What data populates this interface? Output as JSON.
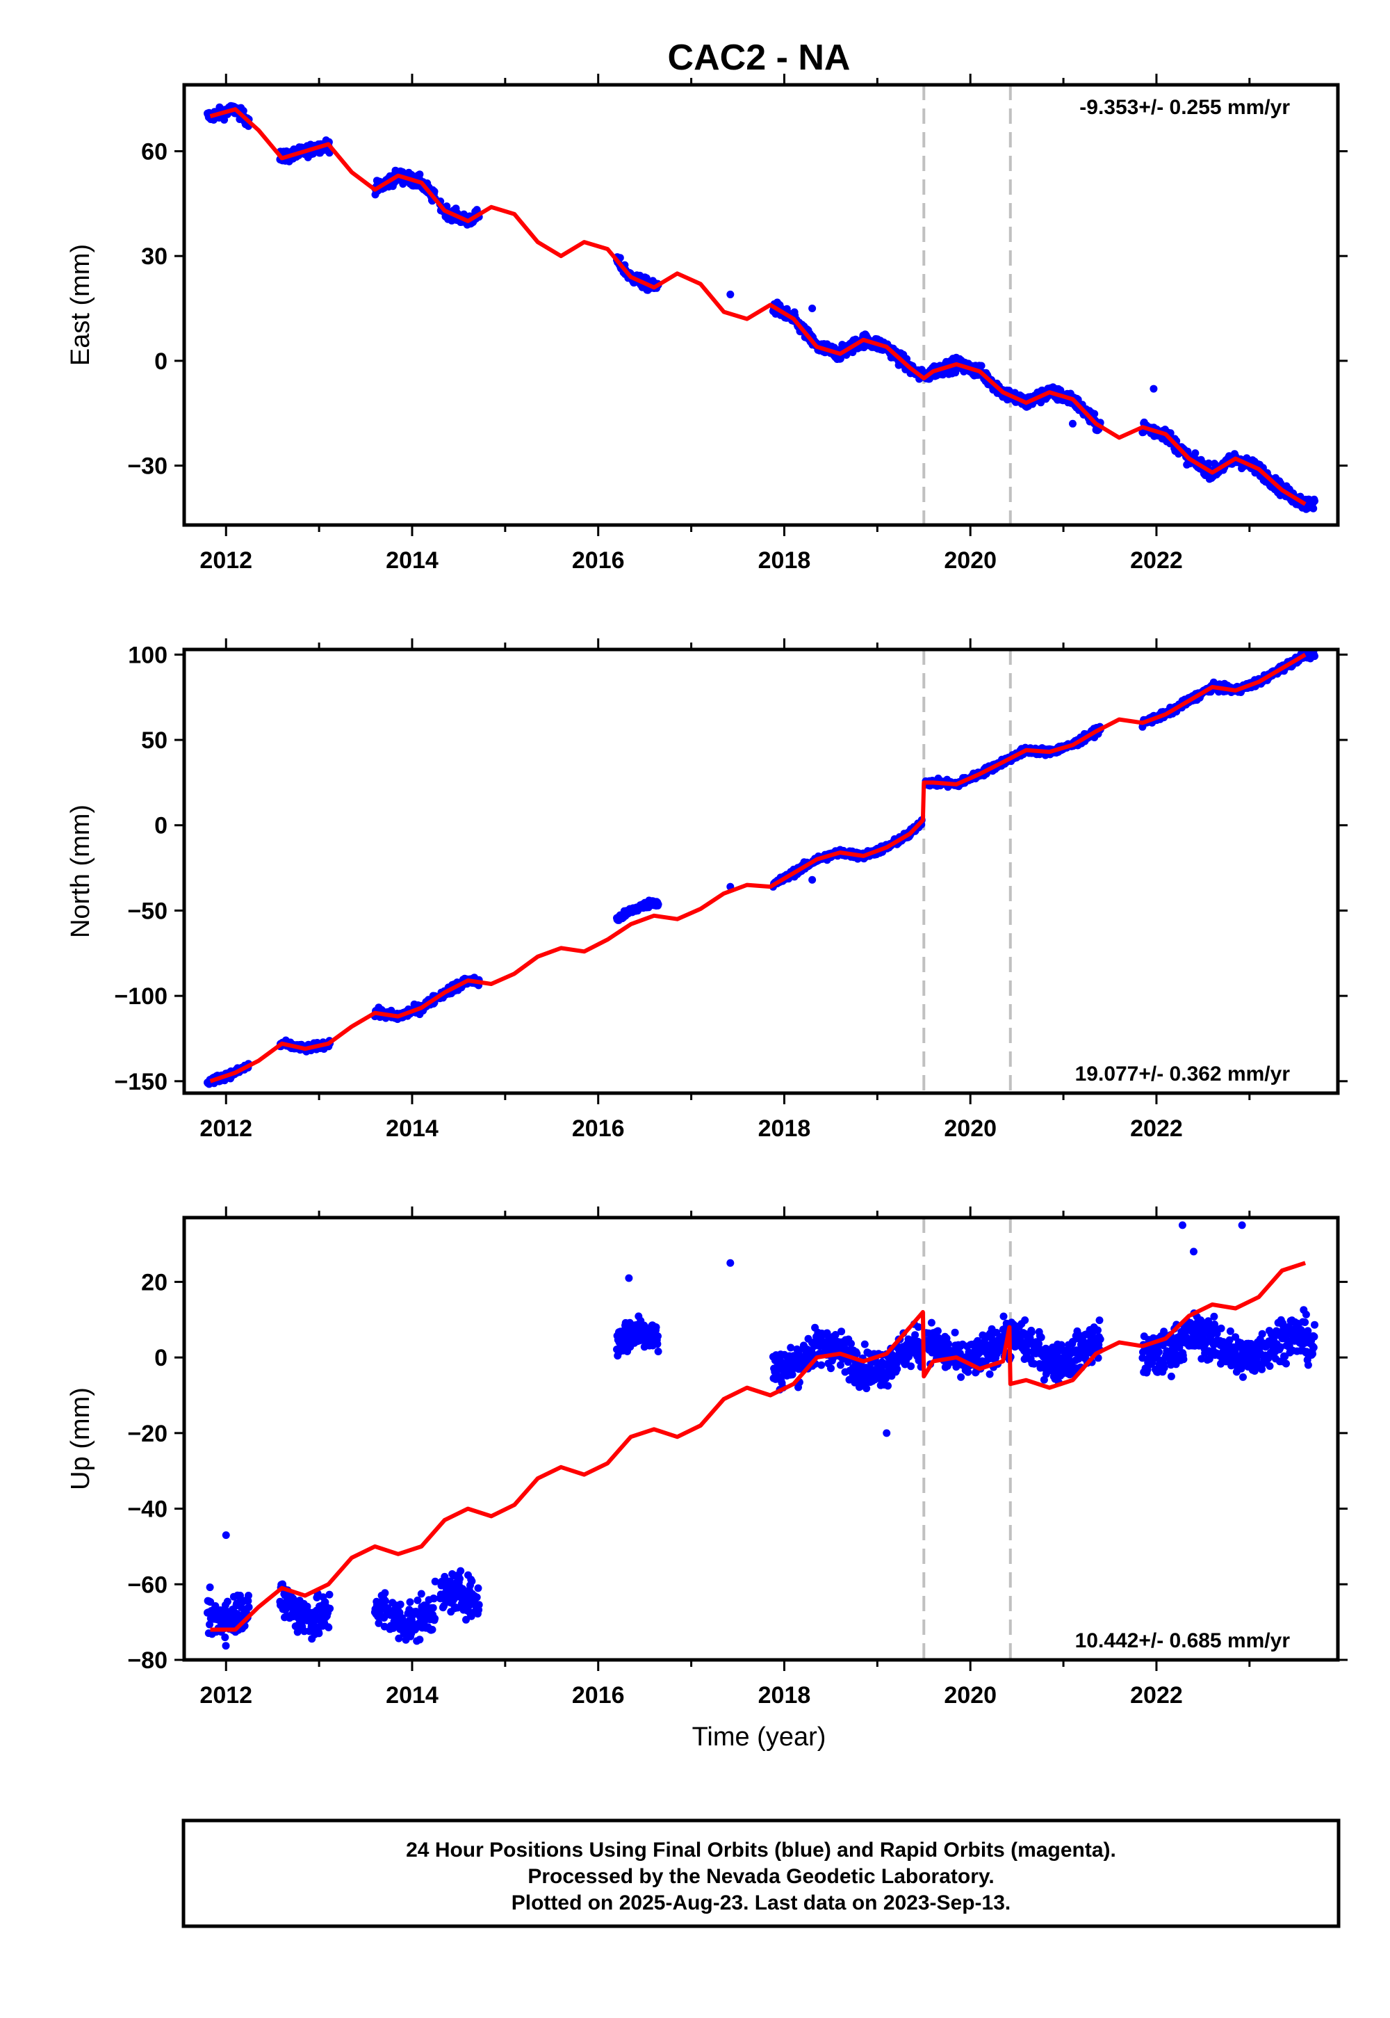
{
  "title": "CAC2 - NA",
  "footer": {
    "lines": [
      "24 Hour Positions Using Final Orbits (blue) and Rapid Orbits (magenta).",
      "Processed by the Nevada Geodetic Laboratory.",
      "Plotted on 2025-Aug-23. Last data on 2023-Sep-13."
    ]
  },
  "colors": {
    "data": "#0000ff",
    "model": "#ff0000",
    "steps": "#c0c0c0",
    "frame": "#000000"
  },
  "chart_data": [
    {
      "id": "east",
      "type": "scatter",
      "ylabel": "East (mm)",
      "xlabel": "",
      "xlim": [
        2011.55,
        2023.95
      ],
      "ylim": [
        -47,
        79
      ],
      "yticks": [
        -30,
        0,
        30,
        60
      ],
      "yticklabels": [
        "−30",
        "0",
        "30",
        "60"
      ],
      "xticks": [
        2012,
        2014,
        2016,
        2018,
        2020,
        2022
      ],
      "xticklabels": [
        "2012",
        "2014",
        "2016",
        "2018",
        "2020",
        "2022"
      ],
      "rate_text": "-9.353+/- 0.255 mm/yr",
      "rate_position": "top-right",
      "step_epochs": [
        2019.5,
        2020.43
      ],
      "model": {
        "x": [
          2011.83,
          2012.1,
          2012.35,
          2012.6,
          2012.85,
          2013.1,
          2013.35,
          2013.6,
          2013.85,
          2014.1,
          2014.35,
          2014.6,
          2014.85,
          2015.1,
          2015.35,
          2015.6,
          2015.85,
          2016.1,
          2016.35,
          2016.6,
          2016.85,
          2017.1,
          2017.35,
          2017.6,
          2017.85,
          2018.1,
          2018.35,
          2018.6,
          2018.85,
          2019.1,
          2019.35,
          2019.5,
          2019.6,
          2019.85,
          2020.1,
          2020.35,
          2020.6,
          2020.85,
          2021.1,
          2021.35,
          2021.6,
          2021.85,
          2022.1,
          2022.35,
          2022.6,
          2022.85,
          2023.1,
          2023.35,
          2023.6
        ],
        "y": [
          70,
          72,
          66,
          58,
          60,
          62,
          54,
          49,
          53,
          51,
          43,
          40,
          44,
          42,
          34,
          30,
          34,
          32,
          24,
          21,
          25,
          22,
          14,
          12,
          16,
          12,
          4,
          2,
          6,
          4,
          -2,
          -5,
          -3,
          -1,
          -3,
          -9,
          -12,
          -9,
          -11,
          -18,
          -22,
          -19,
          -21,
          -28,
          -32,
          -28,
          -31,
          -37,
          -41
        ]
      },
      "segments": [
        {
          "x0": 2011.8,
          "x1": 2012.25,
          "amp": 1.6
        },
        {
          "x0": 2012.58,
          "x1": 2013.12,
          "amp": 1.6
        },
        {
          "x0": 2013.6,
          "x1": 2014.25,
          "amp": 1.8
        },
        {
          "x0": 2014.3,
          "x1": 2014.72,
          "amp": 1.6
        },
        {
          "x0": 2016.2,
          "x1": 2016.65,
          "amp": 1.6
        },
        {
          "x0": 2017.88,
          "x1": 2019.48,
          "amp": 1.8
        },
        {
          "x0": 2019.52,
          "x1": 2021.4,
          "amp": 1.8
        },
        {
          "x0": 2021.85,
          "x1": 2023.7,
          "amp": 1.8
        }
      ],
      "outliers": {
        "x": [
          2012.65,
          2017.42,
          2018.3,
          2021.1,
          2021.97
        ],
        "y": [
          60,
          19,
          15,
          -18,
          -8
        ]
      }
    },
    {
      "id": "north",
      "type": "scatter",
      "ylabel": "North (mm)",
      "xlabel": "",
      "xlim": [
        2011.55,
        2023.95
      ],
      "ylim": [
        -157,
        103
      ],
      "yticks": [
        -150,
        -100,
        -50,
        0,
        50,
        100
      ],
      "yticklabels": [
        "−150",
        "−100",
        "−50",
        "0",
        "50",
        "100"
      ],
      "xticks": [
        2012,
        2014,
        2016,
        2018,
        2020,
        2022
      ],
      "xticklabels": [
        "2012",
        "2014",
        "2016",
        "2018",
        "2020",
        "2022"
      ],
      "rate_text": "19.077+/- 0.362 mm/yr",
      "rate_position": "bottom-right",
      "step_epochs": [
        2019.5,
        2020.43
      ],
      "model": {
        "x": [
          2011.83,
          2012.1,
          2012.35,
          2012.6,
          2012.85,
          2013.1,
          2013.35,
          2013.6,
          2013.85,
          2014.1,
          2014.35,
          2014.6,
          2014.85,
          2015.1,
          2015.35,
          2015.6,
          2015.85,
          2016.1,
          2016.35,
          2016.6,
          2016.85,
          2017.1,
          2017.35,
          2017.6,
          2017.85,
          2018.1,
          2018.35,
          2018.6,
          2018.85,
          2019.1,
          2019.35,
          2019.49,
          2019.5,
          2019.6,
          2019.85,
          2020.1,
          2020.35,
          2020.6,
          2020.85,
          2021.1,
          2021.35,
          2021.6,
          2021.85,
          2022.1,
          2022.35,
          2022.6,
          2022.85,
          2023.1,
          2023.35,
          2023.6
        ],
        "y": [
          -150,
          -145,
          -138,
          -128,
          -131,
          -128,
          -118,
          -110,
          -112,
          -107,
          -98,
          -91,
          -93,
          -87,
          -77,
          -72,
          -74,
          -67,
          -58,
          -53,
          -55,
          -49,
          -40,
          -35,
          -36,
          -28,
          -20,
          -16,
          -18,
          -13,
          -5,
          3,
          25,
          25,
          24,
          30,
          37,
          44,
          43,
          47,
          55,
          62,
          60,
          65,
          73,
          81,
          79,
          84,
          92,
          100
        ]
      },
      "segments": [
        {
          "x0": 2011.8,
          "x1": 2012.25,
          "amp": 2.0
        },
        {
          "x0": 2012.58,
          "x1": 2013.12,
          "amp": 2.0
        },
        {
          "x0": 2013.6,
          "x1": 2014.25,
          "amp": 2.5
        },
        {
          "x0": 2014.3,
          "x1": 2014.72,
          "amp": 2.5
        },
        {
          "x0": 2016.2,
          "x1": 2016.65,
          "amp": 2.0,
          "dy": 8
        },
        {
          "x0": 2017.88,
          "x1": 2019.48,
          "amp": 2.0
        },
        {
          "x0": 2019.52,
          "x1": 2021.4,
          "amp": 2.0
        },
        {
          "x0": 2021.85,
          "x1": 2023.7,
          "amp": 2.0
        }
      ],
      "outliers": {
        "x": [
          2017.42,
          2018.3
        ],
        "y": [
          -36,
          -32
        ]
      }
    },
    {
      "id": "up",
      "type": "scatter",
      "ylabel": "Up (mm)",
      "xlabel": "Time (year)",
      "xlim": [
        2011.55,
        2023.95
      ],
      "ylim": [
        -80,
        37
      ],
      "yticks": [
        -80,
        -60,
        -40,
        -20,
        0,
        20
      ],
      "yticklabels": [
        "−80",
        "−60",
        "−40",
        "−20",
        "0",
        "20"
      ],
      "xticks": [
        2012,
        2014,
        2016,
        2018,
        2020,
        2022
      ],
      "xticklabels": [
        "2012",
        "2014",
        "2016",
        "2018",
        "2020",
        "2022"
      ],
      "rate_text": "10.442+/- 0.685 mm/yr",
      "rate_position": "bottom-right",
      "step_epochs": [
        2019.5,
        2020.43
      ],
      "model": {
        "x": [
          2011.83,
          2012.1,
          2012.35,
          2012.6,
          2012.85,
          2013.1,
          2013.35,
          2013.6,
          2013.85,
          2014.1,
          2014.35,
          2014.6,
          2014.85,
          2015.1,
          2015.35,
          2015.6,
          2015.85,
          2016.1,
          2016.35,
          2016.6,
          2016.85,
          2017.1,
          2017.35,
          2017.6,
          2017.85,
          2018.1,
          2018.35,
          2018.6,
          2018.85,
          2019.1,
          2019.35,
          2019.49,
          2019.5,
          2019.6,
          2019.85,
          2020.1,
          2020.35,
          2020.42,
          2020.43,
          2020.6,
          2020.85,
          2021.1,
          2021.35,
          2021.6,
          2021.85,
          2022.1,
          2022.35,
          2022.6,
          2022.85,
          2023.1,
          2023.35,
          2023.6
        ],
        "y": [
          -72,
          -72,
          -66,
          -61,
          -63,
          -60,
          -53,
          -50,
          -52,
          -50,
          -43,
          -40,
          -42,
          -39,
          -32,
          -29,
          -31,
          -28,
          -21,
          -19,
          -21,
          -18,
          -11,
          -8,
          -10,
          -7,
          0,
          1,
          -1,
          1,
          8,
          12,
          -5,
          -1,
          0,
          -3,
          -1,
          8,
          -7,
          -6,
          -8,
          -6,
          1,
          4,
          3,
          5,
          11,
          14,
          13,
          16,
          23,
          25
        ]
      },
      "segments": [
        {
          "x0": 2011.8,
          "x1": 2012.25,
          "amp": 5.5,
          "y": -66
        },
        {
          "x0": 2012.58,
          "x1": 2013.12,
          "amp": 5.5,
          "y": -66
        },
        {
          "x0": 2013.6,
          "x1": 2014.25,
          "amp": 5.5,
          "y": -67
        },
        {
          "x0": 2014.3,
          "x1": 2014.72,
          "amp": 5.0,
          "y": -65
        },
        {
          "x0": 2016.2,
          "x1": 2016.65,
          "amp": 4.5,
          "y": 4
        },
        {
          "x0": 2017.88,
          "x1": 2019.48,
          "amp": 5.0,
          "y": 0
        },
        {
          "x0": 2019.52,
          "x1": 2021.4,
          "amp": 5.0,
          "y": 2
        },
        {
          "x0": 2021.85,
          "x1": 2023.7,
          "amp": 5.5,
          "y": 3
        }
      ],
      "outliers": {
        "x": [
          2012.0,
          2016.33,
          2017.42,
          2019.1,
          2022.28,
          2022.92,
          2022.4
        ],
        "y": [
          -47,
          21,
          25,
          -20,
          35,
          35,
          28
        ]
      }
    }
  ]
}
